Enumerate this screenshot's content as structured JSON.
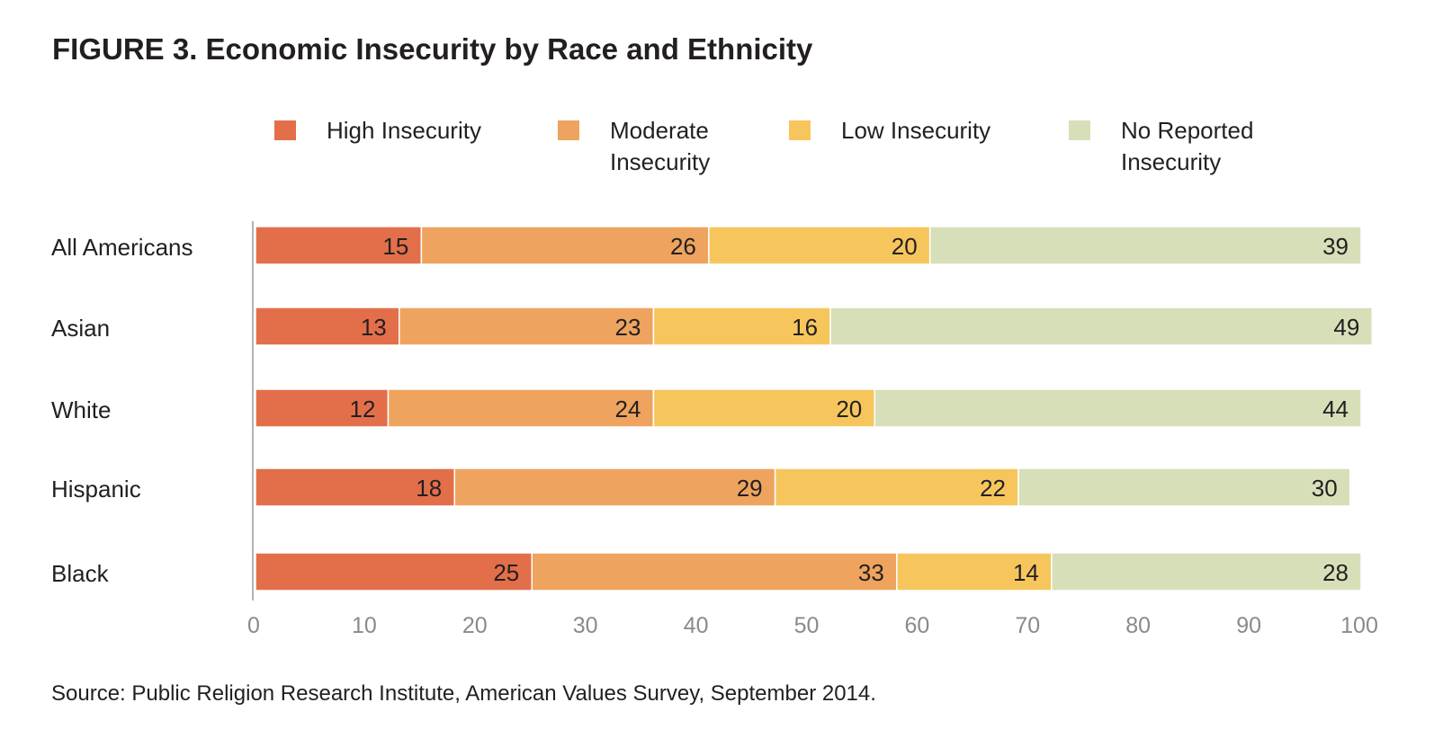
{
  "figure": {
    "title": "FIGURE 3. Economic Insecurity by Race and Ethnicity",
    "source": "Source: Public Religion Research Institute, American Values Survey, September 2014."
  },
  "legend": [
    {
      "label": "High Insecurity",
      "color": "#e36f4a"
    },
    {
      "label": "Moderate Insecurity",
      "color": "#eea45e"
    },
    {
      "label": "Low Insecurity",
      "color": "#f6c65d"
    },
    {
      "label": "No Reported Insecurity",
      "color": "#d7dfb9"
    }
  ],
  "chart_data": {
    "type": "bar",
    "orientation": "horizontal",
    "stacked": true,
    "title": "FIGURE 3. Economic Insecurity by Race and Ethnicity",
    "categories": [
      "All Americans",
      "Asian",
      "White",
      "Hispanic",
      "Black"
    ],
    "series": [
      {
        "name": "High Insecurity",
        "color": "#e36f4a",
        "values": [
          15,
          13,
          12,
          18,
          25
        ]
      },
      {
        "name": "Moderate Insecurity",
        "color": "#eea45e",
        "values": [
          26,
          23,
          24,
          29,
          33
        ]
      },
      {
        "name": "Low Insecurity",
        "color": "#f6c65d",
        "values": [
          20,
          16,
          20,
          22,
          14
        ]
      },
      {
        "name": "No Reported Insecurity",
        "color": "#d7dfb9",
        "values": [
          39,
          49,
          44,
          30,
          28
        ]
      }
    ],
    "xlim": [
      0,
      100
    ],
    "xticks": [
      "0",
      "10",
      "20",
      "30",
      "40",
      "50",
      "60",
      "70",
      "80",
      "90",
      "100"
    ],
    "xlabel": "",
    "ylabel": "",
    "grid": false,
    "legend_position": "top"
  }
}
